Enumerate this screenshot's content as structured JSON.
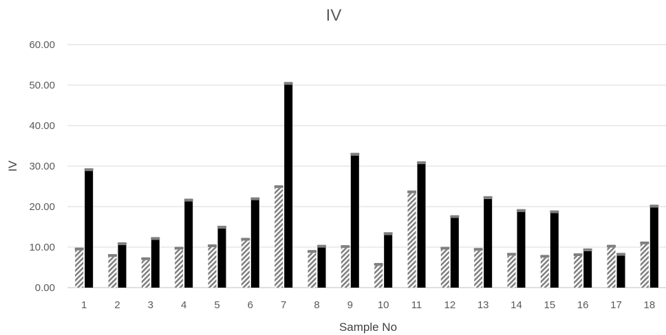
{
  "chart_data": {
    "type": "bar",
    "title": "IV",
    "xlabel": "Sample No",
    "ylabel": "IV",
    "ylim": [
      0,
      60
    ],
    "yticks": [
      "0.00",
      "10.00",
      "20.00",
      "30.00",
      "40.00",
      "50.00",
      "60.00"
    ],
    "categories": [
      "1",
      "2",
      "3",
      "4",
      "5",
      "6",
      "7",
      "8",
      "9",
      "10",
      "11",
      "12",
      "13",
      "14",
      "15",
      "16",
      "17",
      "18"
    ],
    "grid": true,
    "legend": "none",
    "series": [
      {
        "style": "hatched",
        "color": "#7f7f7f",
        "values": [
          9.2,
          7.6,
          6.8,
          9.4,
          10.0,
          11.6,
          24.6,
          8.6,
          9.8,
          5.4,
          23.3,
          9.4,
          9.1,
          7.9,
          7.4,
          7.8,
          9.9,
          10.7
        ]
      },
      {
        "style": "solid",
        "color": "#000000",
        "values": [
          28.8,
          10.5,
          11.8,
          21.3,
          14.6,
          21.6,
          50.1,
          9.9,
          32.6,
          13.0,
          30.5,
          17.2,
          21.9,
          18.7,
          18.4,
          9.0,
          7.9,
          19.8
        ]
      }
    ]
  }
}
